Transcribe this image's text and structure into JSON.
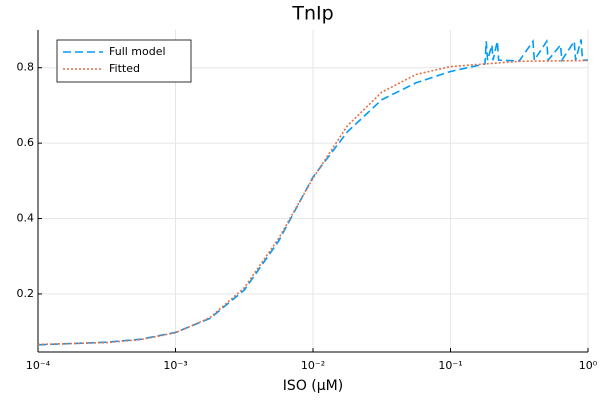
{
  "chart_data": {
    "type": "line",
    "title": "TnIp",
    "x_label": "ISO (μM)",
    "xscale": "log",
    "xlim": [
      0.0001,
      1
    ],
    "ylim": [
      0.046,
      0.9
    ],
    "xticks": [
      {
        "value": 0.0001,
        "label": "10⁻⁴"
      },
      {
        "value": 0.001,
        "label": "10⁻³"
      },
      {
        "value": 0.01,
        "label": "10⁻²"
      },
      {
        "value": 0.1,
        "label": "10⁻¹"
      },
      {
        "value": 1,
        "label": "10⁰"
      }
    ],
    "yticks": [
      0.2,
      0.4,
      0.6,
      0.8
    ],
    "grid": true,
    "legend": "top-left",
    "series": [
      {
        "name": "Full model",
        "color": "#009af9",
        "dash": "dashed",
        "x": [
          0.0001,
          0.000316,
          0.000562,
          0.001,
          0.00178,
          0.00316,
          0.00562,
          0.01,
          0.0178,
          0.0316,
          0.0562,
          0.1,
          0.178,
          0.182,
          0.186,
          0.2,
          0.204,
          0.219,
          0.224,
          0.316,
          0.398,
          0.407,
          0.501,
          0.513,
          0.631,
          0.646,
          0.794,
          0.813,
          0.891,
          0.912,
          1
        ],
        "values": [
          0.065,
          0.072,
          0.08,
          0.098,
          0.135,
          0.21,
          0.34,
          0.51,
          0.63,
          0.715,
          0.76,
          0.79,
          0.81,
          0.87,
          0.82,
          0.86,
          0.82,
          0.87,
          0.82,
          0.818,
          0.87,
          0.82,
          0.87,
          0.82,
          0.86,
          0.82,
          0.87,
          0.82,
          0.875,
          0.82,
          0.82
        ]
      },
      {
        "name": "Fitted",
        "color": "#e26f46",
        "dash": "dotted",
        "x": [
          0.0001,
          0.000316,
          0.000562,
          0.001,
          0.00178,
          0.00316,
          0.00562,
          0.01,
          0.0178,
          0.0316,
          0.0562,
          0.1,
          0.316,
          1
        ],
        "values": [
          0.066,
          0.071,
          0.079,
          0.097,
          0.137,
          0.216,
          0.347,
          0.507,
          0.646,
          0.735,
          0.782,
          0.803,
          0.817,
          0.819
        ]
      }
    ]
  }
}
